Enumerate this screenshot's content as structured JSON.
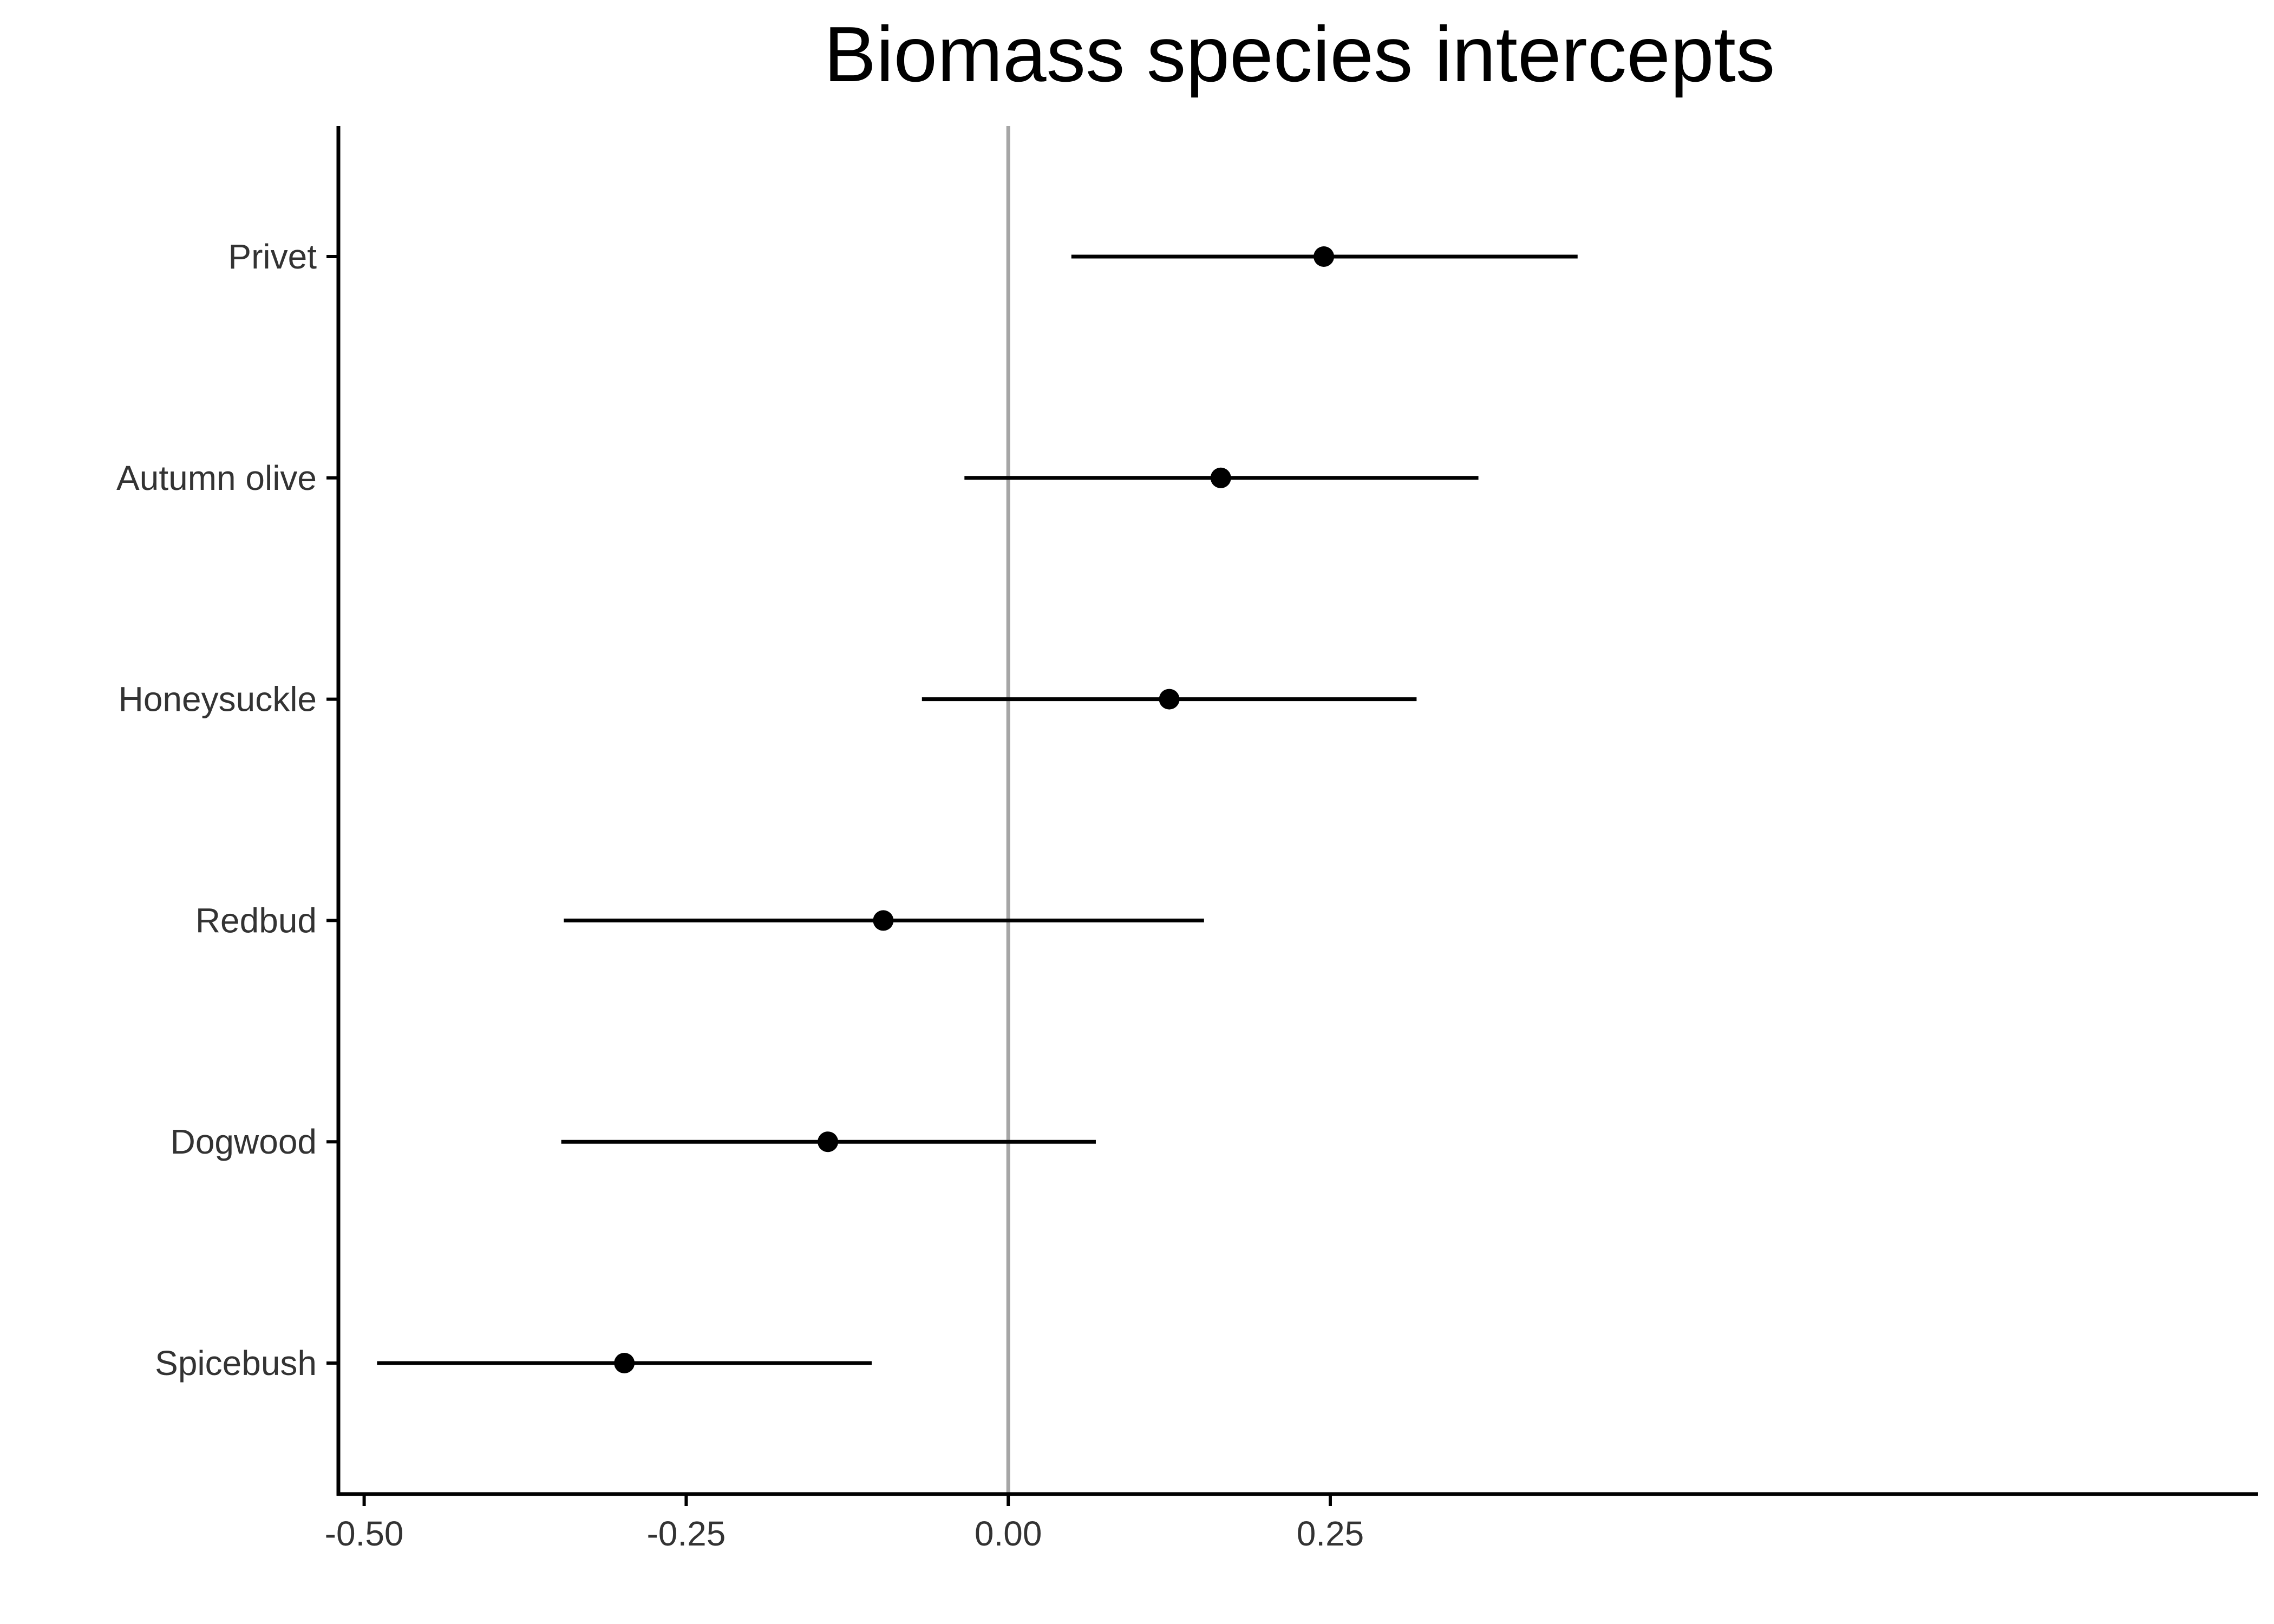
{
  "chart_data": {
    "type": "scatter",
    "subtype": "point-range (forest plot)",
    "title": "Biomass species intercepts",
    "xlabel": "",
    "ylabel": "",
    "xlim": [
      -0.52,
      0.97
    ],
    "x_ticks": [
      -0.5,
      -0.25,
      0.0,
      0.25
    ],
    "x_tick_labels": [
      "-0.50",
      "-0.25",
      "0.00",
      "0.25"
    ],
    "reference_line": {
      "x": 0.0,
      "color": "#a6a6a6"
    },
    "grid": false,
    "legend": "none",
    "categories": [
      "Privet",
      "Autumn olive",
      "Honeysuckle",
      "Redbud",
      "Dogwood",
      "Spicebush"
    ],
    "series": [
      {
        "estimate": [
          0.245,
          0.165,
          0.125,
          -0.097,
          -0.14,
          -0.298
        ],
        "lower": [
          0.049,
          -0.034,
          -0.067,
          -0.345,
          -0.347,
          -0.49
        ],
        "upper": [
          0.442,
          0.365,
          0.317,
          0.152,
          0.068,
          -0.106
        ]
      }
    ],
    "colors": {
      "points": "#000000",
      "intervals": "#000000",
      "axis": "#000000",
      "ref_line": "#a6a6a6",
      "tick_labels": "#333333"
    }
  }
}
